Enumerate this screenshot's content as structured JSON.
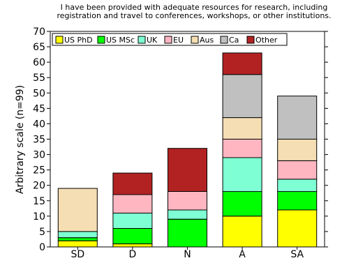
{
  "chart_data": {
    "type": "bar",
    "stacked": true,
    "title_lines": [
      "I have been provided with adequate resources for research, including",
      "registration and travel to conferences, workshops, or other institutions."
    ],
    "ylabel": "Arbitrary scale (n=99)",
    "xlabel": "",
    "ylim": [
      0,
      70
    ],
    "yticks": [
      0,
      5,
      10,
      15,
      20,
      25,
      30,
      35,
      40,
      45,
      50,
      55,
      60,
      65,
      70
    ],
    "grid": false,
    "legend_position": "top-left",
    "categories": [
      "SD",
      "D",
      "N",
      "A",
      "SA"
    ],
    "series": [
      {
        "name": "US PhD",
        "color": "#ffff00",
        "values": [
          2,
          1,
          0,
          10,
          12
        ]
      },
      {
        "name": "US MSc",
        "color": "#00ff00",
        "values": [
          1,
          5,
          9,
          8,
          6
        ]
      },
      {
        "name": "UK",
        "color": "#7fffd4",
        "values": [
          2,
          5,
          3,
          11,
          4
        ]
      },
      {
        "name": "EU",
        "color": "#ffb6c1",
        "values": [
          0,
          6,
          6,
          6,
          6
        ]
      },
      {
        "name": "Aus",
        "color": "#f5deb3",
        "values": [
          14,
          0,
          0,
          7,
          7
        ]
      },
      {
        "name": "Ca",
        "color": "#c0c0c0",
        "values": [
          0,
          0,
          0,
          14,
          14
        ]
      },
      {
        "name": "Other",
        "color": "#b22222",
        "values": [
          0,
          7,
          14,
          7,
          0
        ]
      }
    ]
  }
}
